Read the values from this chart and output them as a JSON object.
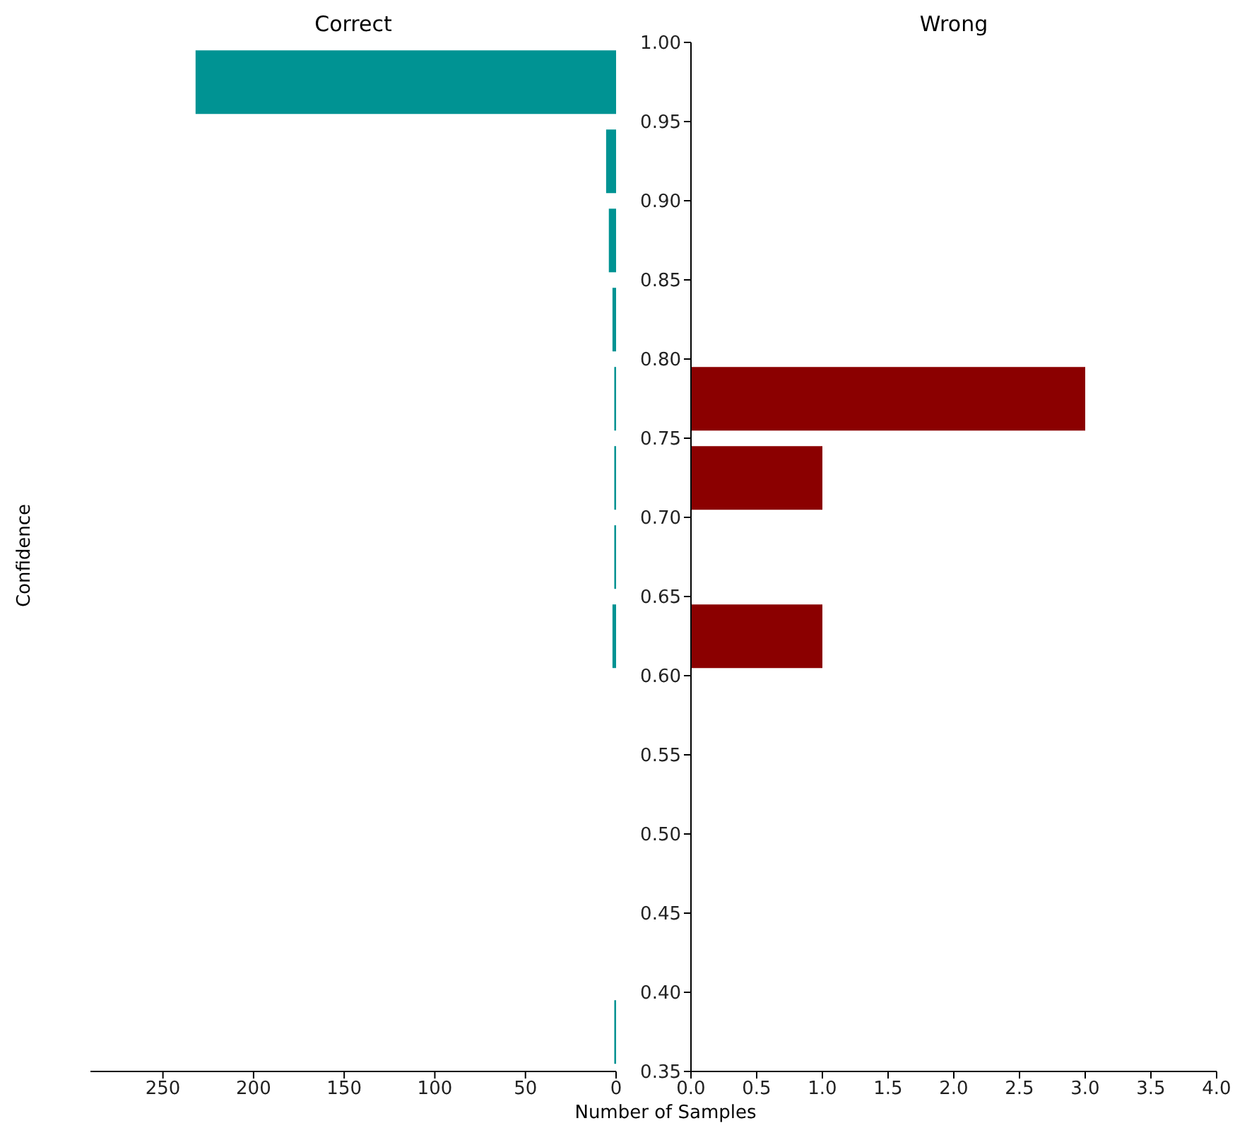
{
  "chart_data": [
    {
      "type": "histogram",
      "orientation": "horizontal",
      "title": "Correct",
      "ylabel": "Confidence",
      "xlabel": "Number of Samples",
      "color": "#009393",
      "bins": [
        0.35,
        0.4,
        0.45,
        0.5,
        0.55,
        0.6,
        0.65,
        0.7,
        0.75,
        0.8,
        0.85,
        0.9,
        0.95,
        1.0
      ],
      "values": [
        1,
        0,
        0,
        0,
        0,
        2,
        1,
        1,
        1,
        2,
        4,
        5.5,
        232
      ],
      "xlim": [
        290,
        0
      ],
      "xticks": [
        0,
        50,
        100,
        150,
        200,
        250
      ],
      "ylim": [
        0.35,
        1.0
      ],
      "yticks": [
        {
          "value": 0.35,
          "label": null
        },
        {
          "value": 0.4,
          "label": null
        },
        {
          "value": 0.45,
          "label": null
        },
        {
          "value": 0.5,
          "label": null
        },
        {
          "value": 0.55,
          "label": null
        },
        {
          "value": 0.6,
          "label": null
        },
        {
          "value": 0.65,
          "label": null
        },
        {
          "value": 0.7,
          "label": null
        },
        {
          "value": 0.75,
          "label": null
        },
        {
          "value": 0.8,
          "label": null
        },
        {
          "value": 0.85,
          "label": null
        },
        {
          "value": 0.9,
          "label": null
        },
        {
          "value": 0.95,
          "label": null
        },
        {
          "value": 1.0,
          "label": null
        }
      ],
      "tick_labels": "x",
      "grid": false,
      "legend": false
    },
    {
      "type": "histogram",
      "orientation": "horizontal",
      "title": "Wrong",
      "color": "#8b0000",
      "bins": [
        0.35,
        0.4,
        0.45,
        0.5,
        0.55,
        0.6,
        0.65,
        0.7,
        0.75,
        0.8,
        0.85,
        0.9,
        0.95,
        1.0
      ],
      "values": [
        0,
        0,
        0,
        0,
        0,
        1,
        0,
        1,
        3,
        0,
        0,
        0,
        0
      ],
      "xlim": [
        0,
        4
      ],
      "xticks": [
        {
          "value": 0,
          "label": "0.0"
        },
        {
          "value": 0.5,
          "label": "0.5"
        },
        {
          "value": 1,
          "label": "1.0"
        },
        {
          "value": 1.5,
          "label": "1.5"
        },
        {
          "value": 2,
          "label": "2.0"
        },
        {
          "value": 2.5,
          "label": "2.5"
        },
        {
          "value": 3,
          "label": "3.0"
        },
        {
          "value": 3.5,
          "label": "3.5"
        },
        {
          "value": 4,
          "label": "4.0"
        }
      ],
      "ylim": [
        0.35,
        1.0
      ],
      "yticks": [
        {
          "value": 0.35,
          "label": "0.35"
        },
        {
          "value": 0.4,
          "label": "0.40"
        },
        {
          "value": 0.45,
          "label": "0.45"
        },
        {
          "value": 0.5,
          "label": "0.50"
        },
        {
          "value": 0.55,
          "label": "0.55"
        },
        {
          "value": 0.6,
          "label": "0.60"
        },
        {
          "value": 0.65,
          "label": "0.65"
        },
        {
          "value": 0.7,
          "label": "0.70"
        },
        {
          "value": 0.75,
          "label": "0.75"
        },
        {
          "value": 0.8,
          "label": "0.80"
        },
        {
          "value": 0.85,
          "label": "0.85"
        },
        {
          "value": 0.9,
          "label": "0.90"
        },
        {
          "value": 0.95,
          "label": "0.95"
        },
        {
          "value": 1.0,
          "label": "1.00"
        }
      ],
      "grid": false,
      "legend": false
    }
  ]
}
